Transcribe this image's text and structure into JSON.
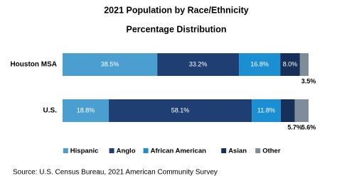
{
  "chart_data": {
    "type": "stacked-bar-horizontal",
    "title": "2021 Population by Race/Ethnicity",
    "subtitle": "Percentage Distribution",
    "categories": [
      "Houston MSA",
      "U.S."
    ],
    "series": [
      {
        "name": "Hispanic",
        "color": "#4a9fd0",
        "values": [
          38.5,
          18.8
        ],
        "value_labels": [
          "38.5%",
          "18.8%"
        ]
      },
      {
        "name": "Anglo",
        "color": "#1f3f73",
        "values": [
          33.2,
          58.1
        ],
        "value_labels": [
          "33.2%",
          "58.1%"
        ]
      },
      {
        "name": "African American",
        "color": "#1b8fd2",
        "values": [
          16.8,
          11.8
        ],
        "value_labels": [
          "16.8%",
          "11.8%"
        ]
      },
      {
        "name": "Asian",
        "color": "#17305a",
        "values": [
          8.0,
          5.7
        ],
        "value_labels": [
          "8.0%",
          "5.7%"
        ]
      },
      {
        "name": "Other",
        "color": "#7f8c99",
        "values": [
          3.5,
          5.6
        ],
        "value_labels": [
          "3.5%",
          "5.6%"
        ]
      }
    ],
    "legend": "bottom",
    "source": "Source: U.S. Census Bureau, 2021 American Community Survey"
  }
}
